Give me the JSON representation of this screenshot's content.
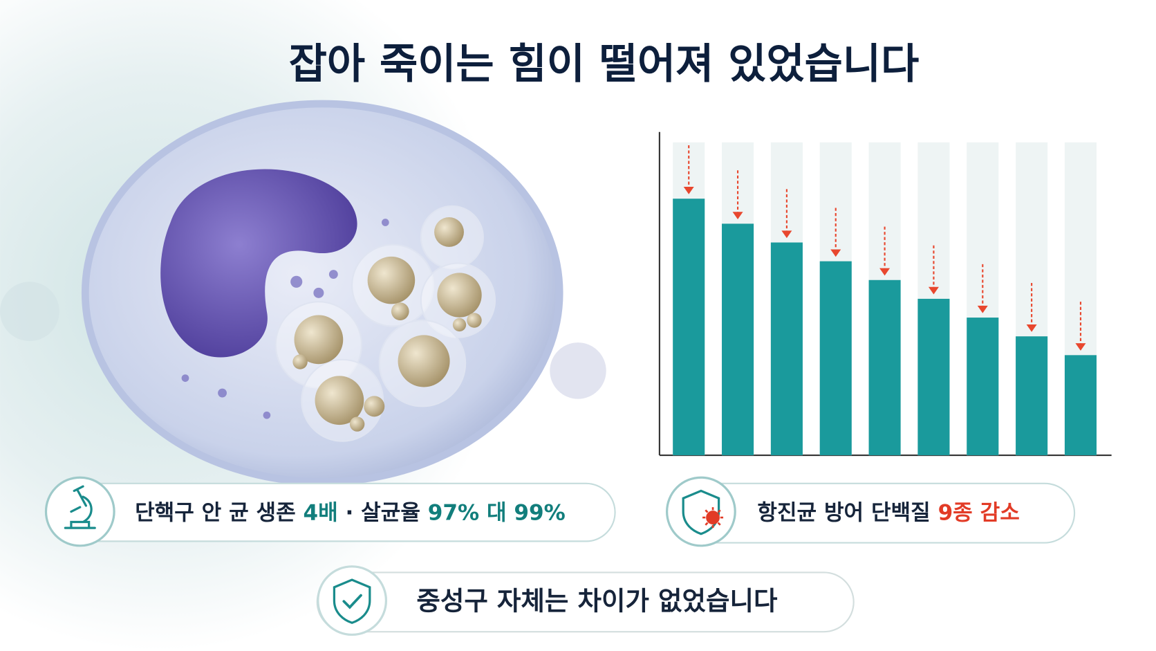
{
  "title": "잡아 죽이는 힘이 떨어져 있었습니다",
  "chart_data": {
    "type": "bar",
    "values": [
      82,
      74,
      68,
      62,
      56,
      50,
      44,
      38,
      32
    ],
    "color": "#1a9a9c",
    "track_color": "#eef4f4",
    "arrow_color": "#e8472e",
    "ylim": [
      0,
      100
    ]
  },
  "callouts": [
    {
      "segments": [
        {
          "text": "단핵구 안 균 생존 ",
          "color": "#16243a"
        },
        {
          "text": "4배",
          "color": "#127e7c"
        },
        {
          "text": " · 살균율 ",
          "color": "#16243a"
        },
        {
          "text": "97% 대 99%",
          "color": "#127e7c"
        }
      ]
    },
    {
      "segments": [
        {
          "text": "항진균 방어 단백질 ",
          "color": "#16243a"
        },
        {
          "text": "9종 감소",
          "color": "#e23b26"
        }
      ]
    },
    {
      "segments": [
        {
          "text": "중성구 자체는 차이가 없었습니다",
          "color": "#16243a"
        }
      ]
    }
  ]
}
